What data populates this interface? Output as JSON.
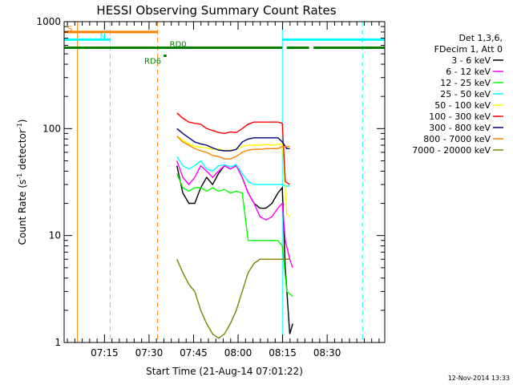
{
  "chart_data": {
    "type": "line",
    "title": "HESSI Observing Summary Count Rates",
    "xlabel": "Start Time (21-Aug-14 07:01:22)",
    "ylabel": "Count Rate (s⁻¹ detector⁻¹)",
    "ylog": true,
    "ylim": [
      1,
      1000
    ],
    "xlim_minutes": [
      0,
      108
    ],
    "xticks": [
      {
        "label": "07:15",
        "t": 13.6
      },
      {
        "label": "07:30",
        "t": 28.6
      },
      {
        "label": "07:45",
        "t": 43.6
      },
      {
        "label": "08:00",
        "t": 58.6
      },
      {
        "label": "08:15",
        "t": 73.6
      },
      {
        "label": "08:30",
        "t": 88.6
      }
    ],
    "yticks": [
      {
        "label": "1",
        "v": 1
      },
      {
        "label": "10",
        "v": 10
      },
      {
        "label": "100",
        "v": 100
      },
      {
        "label": "1000",
        "v": 1000
      }
    ],
    "legend_header": [
      "Det 1,3,6,",
      "FDecim 1, Att 0"
    ],
    "series": [
      {
        "name": "3 - 6 keV",
        "color": "#000000",
        "points": [
          [
            38,
            45
          ],
          [
            40,
            25
          ],
          [
            42,
            20
          ],
          [
            44,
            20
          ],
          [
            46,
            28
          ],
          [
            48,
            35
          ],
          [
            50,
            30
          ],
          [
            52,
            38
          ],
          [
            54,
            45
          ],
          [
            56,
            42
          ],
          [
            58,
            45
          ],
          [
            60,
            35
          ],
          [
            62,
            25
          ],
          [
            64,
            20
          ],
          [
            66,
            18
          ],
          [
            68,
            18
          ],
          [
            70,
            20
          ],
          [
            72,
            25
          ],
          [
            73.5,
            28
          ],
          [
            74.5,
            5
          ],
          [
            76,
            1.2
          ],
          [
            77,
            1.5
          ]
        ]
      },
      {
        "name": "6 - 12 keV",
        "color": "#ff00ff",
        "points": [
          [
            38,
            50
          ],
          [
            40,
            35
          ],
          [
            42,
            30
          ],
          [
            44,
            35
          ],
          [
            46,
            45
          ],
          [
            48,
            40
          ],
          [
            50,
            35
          ],
          [
            52,
            40
          ],
          [
            54,
            45
          ],
          [
            56,
            42
          ],
          [
            58,
            45
          ],
          [
            60,
            35
          ],
          [
            62,
            25
          ],
          [
            64,
            20
          ],
          [
            66,
            15
          ],
          [
            68,
            14
          ],
          [
            70,
            15
          ],
          [
            72,
            18
          ],
          [
            73.5,
            20
          ],
          [
            74.5,
            9
          ],
          [
            76,
            6
          ],
          [
            77,
            5
          ]
        ]
      },
      {
        "name": "12 - 25 keV",
        "color": "#00ff00",
        "points": [
          [
            38,
            38
          ],
          [
            40,
            28
          ],
          [
            42,
            26
          ],
          [
            44,
            28
          ],
          [
            46,
            28
          ],
          [
            48,
            26
          ],
          [
            50,
            28
          ],
          [
            52,
            26
          ],
          [
            54,
            27
          ],
          [
            56,
            25
          ],
          [
            58,
            26
          ],
          [
            60,
            25
          ],
          [
            62,
            9
          ],
          [
            64,
            9
          ],
          [
            66,
            9
          ],
          [
            68,
            9
          ],
          [
            70,
            9
          ],
          [
            72,
            9
          ],
          [
            73.5,
            8
          ],
          [
            75,
            3
          ],
          [
            77,
            2.7
          ]
        ]
      },
      {
        "name": "25 - 50 keV",
        "color": "#00ffff",
        "points": [
          [
            38,
            55
          ],
          [
            40,
            45
          ],
          [
            42,
            42
          ],
          [
            44,
            45
          ],
          [
            46,
            50
          ],
          [
            48,
            42
          ],
          [
            50,
            40
          ],
          [
            52,
            45
          ],
          [
            54,
            46
          ],
          [
            56,
            44
          ],
          [
            58,
            46
          ],
          [
            60,
            38
          ],
          [
            62,
            32
          ],
          [
            64,
            30
          ],
          [
            66,
            30
          ],
          [
            68,
            30
          ],
          [
            70,
            30
          ],
          [
            72,
            30
          ],
          [
            73.5,
            30
          ],
          [
            74.5,
            29
          ],
          [
            76,
            29
          ]
        ]
      },
      {
        "name": "50 - 100 keV",
        "color": "#ffff00",
        "points": [
          [
            38,
            85
          ],
          [
            40,
            78
          ],
          [
            42,
            72
          ],
          [
            44,
            68
          ],
          [
            46,
            67
          ],
          [
            48,
            66
          ],
          [
            50,
            64
          ],
          [
            52,
            65
          ],
          [
            54,
            62
          ],
          [
            56,
            63
          ],
          [
            58,
            64
          ],
          [
            60,
            68
          ],
          [
            62,
            70
          ],
          [
            64,
            70
          ],
          [
            66,
            70
          ],
          [
            68,
            71
          ],
          [
            70,
            70
          ],
          [
            72,
            71
          ],
          [
            73.5,
            72
          ],
          [
            75,
            16
          ],
          [
            76,
            15
          ]
        ]
      },
      {
        "name": "100 - 300 keV",
        "color": "#ff0000",
        "points": [
          [
            38,
            140
          ],
          [
            40,
            125
          ],
          [
            42,
            115
          ],
          [
            44,
            112
          ],
          [
            46,
            110
          ],
          [
            48,
            100
          ],
          [
            50,
            96
          ],
          [
            52,
            92
          ],
          [
            54,
            90
          ],
          [
            56,
            93
          ],
          [
            58,
            92
          ],
          [
            60,
            100
          ],
          [
            62,
            110
          ],
          [
            64,
            115
          ],
          [
            66,
            115
          ],
          [
            68,
            115
          ],
          [
            70,
            115
          ],
          [
            72,
            115
          ],
          [
            73.5,
            112
          ],
          [
            74.5,
            32
          ],
          [
            76,
            30
          ]
        ]
      },
      {
        "name": "300 - 800 keV",
        "color": "#000080",
        "points": [
          [
            38,
            100
          ],
          [
            40,
            90
          ],
          [
            42,
            82
          ],
          [
            44,
            75
          ],
          [
            46,
            72
          ],
          [
            48,
            70
          ],
          [
            50,
            66
          ],
          [
            52,
            63
          ],
          [
            54,
            62
          ],
          [
            56,
            62
          ],
          [
            58,
            64
          ],
          [
            60,
            75
          ],
          [
            62,
            80
          ],
          [
            64,
            82
          ],
          [
            66,
            82
          ],
          [
            68,
            82
          ],
          [
            70,
            82
          ],
          [
            72,
            82
          ],
          [
            73.5,
            75
          ],
          [
            75,
            65
          ],
          [
            76,
            65
          ]
        ]
      },
      {
        "name": "800 - 7000 keV",
        "color": "#ff8000",
        "points": [
          [
            38,
            85
          ],
          [
            40,
            75
          ],
          [
            42,
            70
          ],
          [
            44,
            65
          ],
          [
            46,
            62
          ],
          [
            48,
            60
          ],
          [
            50,
            56
          ],
          [
            52,
            55
          ],
          [
            54,
            52
          ],
          [
            56,
            52
          ],
          [
            58,
            55
          ],
          [
            60,
            60
          ],
          [
            62,
            63
          ],
          [
            64,
            64
          ],
          [
            66,
            64
          ],
          [
            68,
            65
          ],
          [
            70,
            65
          ],
          [
            72,
            65
          ],
          [
            73.5,
            68
          ],
          [
            75,
            68
          ],
          [
            76,
            68
          ]
        ]
      },
      {
        "name": "7000 - 20000 keV",
        "color": "#808000",
        "points": [
          [
            38,
            6
          ],
          [
            40,
            4.5
          ],
          [
            42,
            3.5
          ],
          [
            44,
            3
          ],
          [
            46,
            2
          ],
          [
            48,
            1.5
          ],
          [
            50,
            1.2
          ],
          [
            52,
            1.1
          ],
          [
            54,
            1.2
          ],
          [
            56,
            1.5
          ],
          [
            58,
            2
          ],
          [
            60,
            3
          ],
          [
            62,
            4.5
          ],
          [
            64,
            5.5
          ],
          [
            66,
            6
          ],
          [
            68,
            6
          ],
          [
            70,
            6
          ],
          [
            72,
            6
          ],
          [
            73.5,
            6
          ],
          [
            75,
            6
          ],
          [
            76,
            6
          ]
        ]
      }
    ],
    "state_bars": [
      {
        "label": "S",
        "color": "#ff8000",
        "segments": [
          [
            0,
            31.5
          ]
        ],
        "v": 800
      },
      {
        "label": "N",
        "color": "#00ffff",
        "segments": [
          [
            0,
            15.5
          ],
          [
            73.5,
            108
          ]
        ],
        "v": 680
      },
      {
        "label": "RD0",
        "color": "#008000",
        "segments": [
          [
            0,
            73.5
          ],
          [
            75,
            82.5
          ],
          [
            84,
            108
          ]
        ],
        "v": 570
      },
      {
        "label": "RD6",
        "color": "#008000",
        "segments": [
          [
            33.5,
            34.5
          ]
        ],
        "v": 480
      }
    ],
    "vertical_markers": [
      {
        "t": 4.5,
        "color": "#ff8000",
        "style": "solid"
      },
      {
        "t": 15.5,
        "color": "#00ffff",
        "style": "dashed"
      },
      {
        "t": 31.5,
        "color": "#ff8000",
        "style": "dashed"
      },
      {
        "t": 73.5,
        "color": "#00ffff",
        "style": "solid"
      },
      {
        "t": 100.5,
        "color": "#00ffff",
        "style": "dashed"
      }
    ]
  },
  "footer": {
    "timestamp": "12-Nov-2014 13:33"
  }
}
